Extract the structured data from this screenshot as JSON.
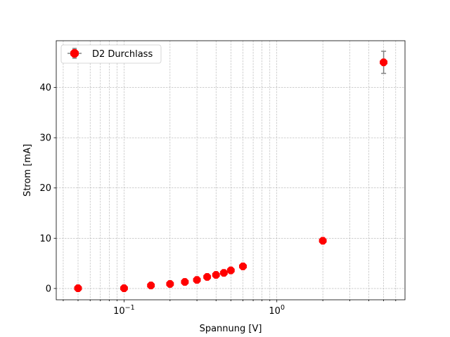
{
  "chart_data": {
    "type": "scatter",
    "xscale": "log",
    "xlabel": "Spannung [V]",
    "ylabel": "Strom [mA]",
    "xlim": [
      0.036,
      6.9
    ],
    "ylim": [
      -2.25,
      49.3
    ],
    "grid": true,
    "legend_position": "top-left",
    "x_ticks": [
      {
        "value": 0.1,
        "base": "10",
        "exp": "−1"
      },
      {
        "value": 1,
        "base": "10",
        "exp": "0"
      }
    ],
    "y_ticks": [
      {
        "value": 0,
        "label": "0"
      },
      {
        "value": 10,
        "label": "10"
      },
      {
        "value": 20,
        "label": "20"
      },
      {
        "value": 30,
        "label": "30"
      },
      {
        "value": 40,
        "label": "40"
      }
    ],
    "series": [
      {
        "name": "D2 Durchlass",
        "color": "#ff0000",
        "errorbar_color": "#808080",
        "points": [
          {
            "x": 0.05,
            "y": 0.05,
            "yerr": 0.5,
            "xerr": 0.002
          },
          {
            "x": 0.1,
            "y": 0.05,
            "yerr": 0.5,
            "xerr": 0.004
          },
          {
            "x": 0.15,
            "y": 0.6,
            "yerr": 0.5,
            "xerr": 0.006
          },
          {
            "x": 0.2,
            "y": 0.9,
            "yerr": 0.5,
            "xerr": 0.008
          },
          {
            "x": 0.25,
            "y": 1.3,
            "yerr": 0.5,
            "xerr": 0.01
          },
          {
            "x": 0.3,
            "y": 1.7,
            "yerr": 0.5,
            "xerr": 0.012
          },
          {
            "x": 0.35,
            "y": 2.3,
            "yerr": 0.5,
            "xerr": 0.014
          },
          {
            "x": 0.4,
            "y": 2.7,
            "yerr": 0.5,
            "xerr": 0.016
          },
          {
            "x": 0.45,
            "y": 3.1,
            "yerr": 0.5,
            "xerr": 0.018
          },
          {
            "x": 0.5,
            "y": 3.6,
            "yerr": 0.5,
            "xerr": 0.02
          },
          {
            "x": 0.6,
            "y": 4.4,
            "yerr": 0.5,
            "xerr": 0.024
          },
          {
            "x": 2.0,
            "y": 9.5,
            "yerr": 0.5,
            "xerr": 0.08
          },
          {
            "x": 5.0,
            "y": 45.0,
            "yerr": 2.2,
            "xerr": 0.2
          }
        ]
      }
    ]
  }
}
